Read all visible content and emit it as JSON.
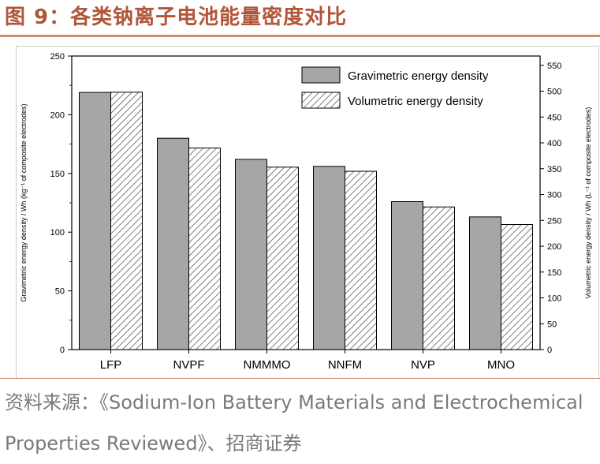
{
  "header": {
    "title": "图 9：各类钠离子电池能量密度对比"
  },
  "footer": {
    "source": "资料来源：《Sodium-Ion Battery Materials and Electrochemical Properties Reviewed》、招商证券"
  },
  "colors": {
    "title": "#b2563a",
    "rule": "#c98a6e",
    "gravimetric_fill": "#a6a6a6",
    "bar_stroke": "#000000",
    "hatch": "#555555"
  },
  "chart_data": {
    "type": "bar",
    "categories": [
      "LFP",
      "NVPF",
      "NMMMO",
      "NNFM",
      "NVP",
      "MNO"
    ],
    "series": [
      {
        "name": "Gravimetric energy density",
        "axis": "left",
        "values": [
          219,
          180,
          162,
          156,
          126,
          113
        ]
      },
      {
        "name": "Volumetric energy density",
        "axis": "right",
        "values": [
          498,
          390,
          353,
          345,
          276,
          242
        ]
      }
    ],
    "ylabel_left": "Gravimetric energy density / Wh (kg⁻¹ of composite electrodes)",
    "ylabel_right": "Volumetric energy density / Wh (L⁻¹ of composite electrodes)",
    "ylim_left": [
      0,
      250
    ],
    "ylim_right": [
      0,
      568
    ],
    "yticks_left": [
      0,
      50,
      100,
      150,
      200,
      250
    ],
    "yticks_right": [
      0,
      50,
      100,
      150,
      200,
      250,
      300,
      350,
      400,
      450,
      500,
      550
    ],
    "legend_position": "top-right",
    "grid": false
  }
}
